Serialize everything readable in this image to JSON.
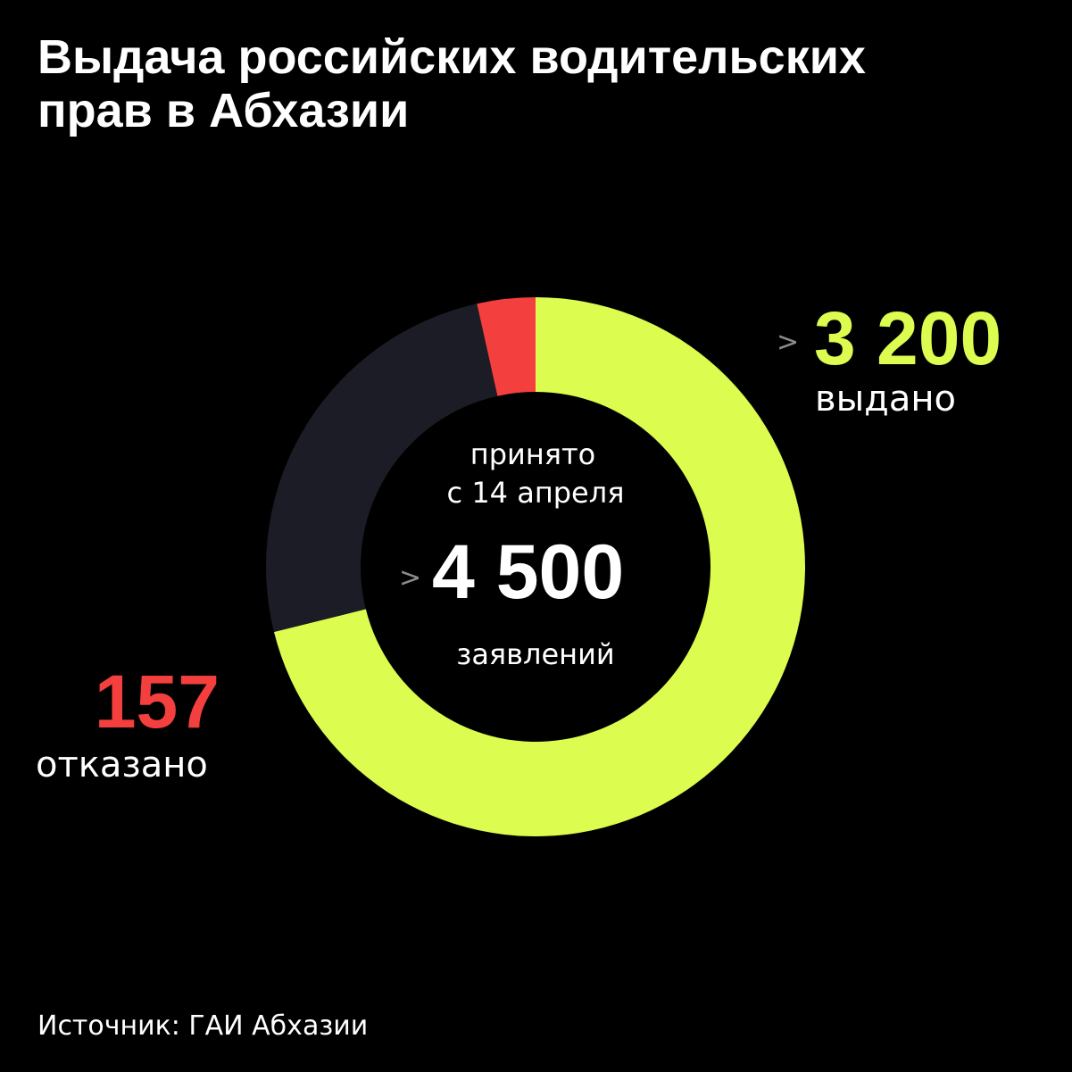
{
  "title": {
    "line1": "Выдача российских водительских",
    "line2": "прав в Абхазии"
  },
  "center": {
    "label_top_1": "принято",
    "label_top_2": "с 14 апреля",
    "prefix": ">",
    "value": "4 500",
    "label_bottom": "заявлений"
  },
  "callouts": {
    "issued": {
      "prefix": ">",
      "value": "3 200",
      "label": "выдано"
    },
    "refused": {
      "value": "157",
      "label": "отказано"
    }
  },
  "source": "Источник: ГАИ Абхазии",
  "colors": {
    "issued": "#dcfc50",
    "refused": "#f43f3f",
    "other": "#1c1c26",
    "background": "#000000"
  },
  "chart_data": {
    "type": "pie",
    "total": 4500,
    "slices": [
      {
        "key": "issued",
        "value": 3200,
        "color": "#dcfc50"
      },
      {
        "key": "other",
        "value": 1143,
        "color": "#1c1c26"
      },
      {
        "key": "refused",
        "value": 157,
        "color": "#f43f3f"
      }
    ]
  }
}
